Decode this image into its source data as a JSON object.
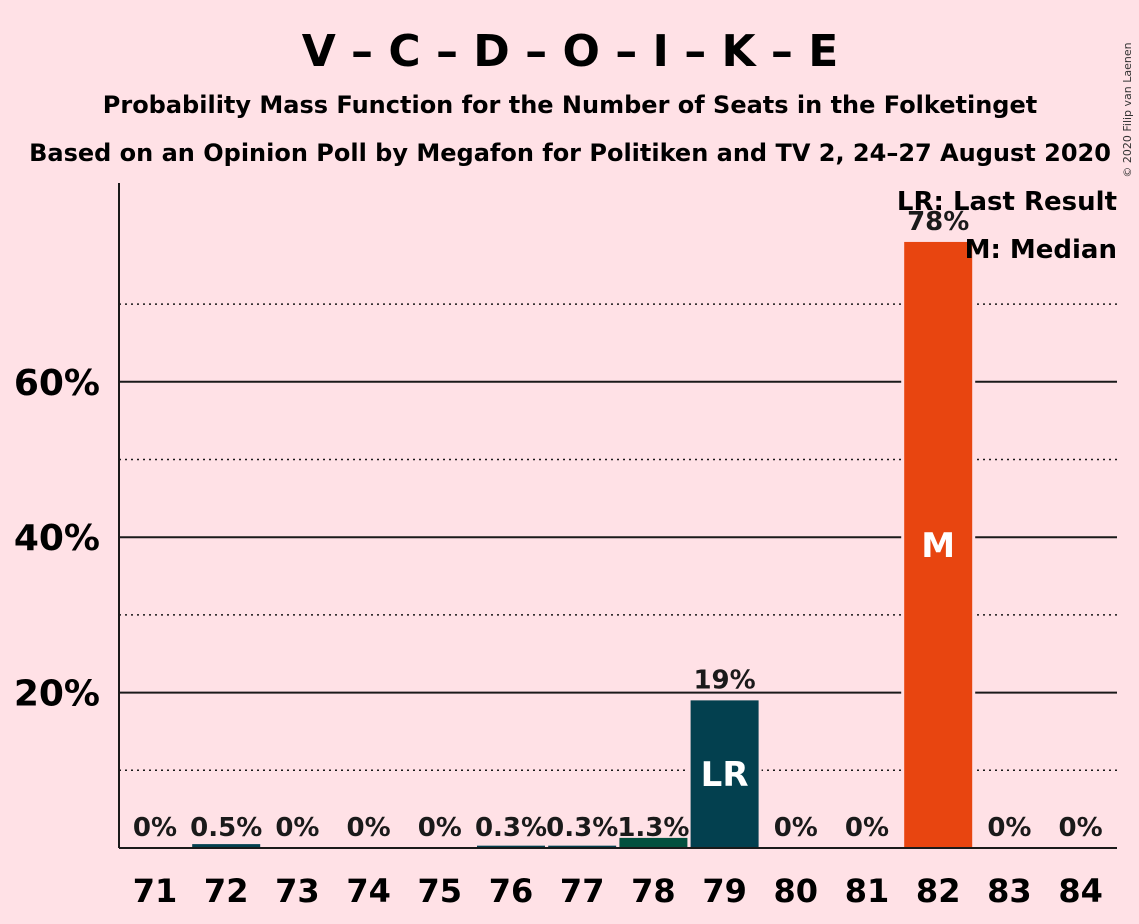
{
  "title": "V – C – D – O – I – K – E",
  "subtitle1": "Probability Mass Function for the Number of Seats in the Folketinget",
  "subtitle2": "Based on an Opinion Poll by Megafon for Politiken and TV 2, 24–27 August 2020",
  "copyright": "© 2020 Filip van Laenen",
  "legend": {
    "last_result": "LR: Last Result",
    "median": "M: Median"
  },
  "colors": {
    "background": "#ffe1e6",
    "median_bar": "#e84510",
    "last_result_bar": "#03404f",
    "bar_78": "#03503f",
    "default_bar": "#03404f"
  },
  "chart_data": {
    "type": "bar",
    "categories": [
      "71",
      "72",
      "73",
      "74",
      "75",
      "76",
      "77",
      "78",
      "79",
      "80",
      "81",
      "82",
      "83",
      "84"
    ],
    "values": [
      0,
      0.5,
      0,
      0,
      0,
      0.3,
      0.3,
      1.3,
      19,
      0,
      0,
      78,
      0,
      0
    ],
    "data_labels": [
      "0%",
      "0.5%",
      "0%",
      "0%",
      "0%",
      "0.3%",
      "0.3%",
      "1.3%",
      "19%",
      "0%",
      "0%",
      "78%",
      "0%",
      "0%"
    ],
    "bar_marks": {
      "79": "LR",
      "82": "M"
    },
    "yticks": [
      20,
      40,
      60
    ],
    "ytick_labels": [
      "20%",
      "40%",
      "60%"
    ],
    "minor_gridlines": [
      10,
      30,
      50,
      70
    ],
    "ylim": [
      0,
      85
    ],
    "grid": true,
    "legend_position": "top-right"
  }
}
